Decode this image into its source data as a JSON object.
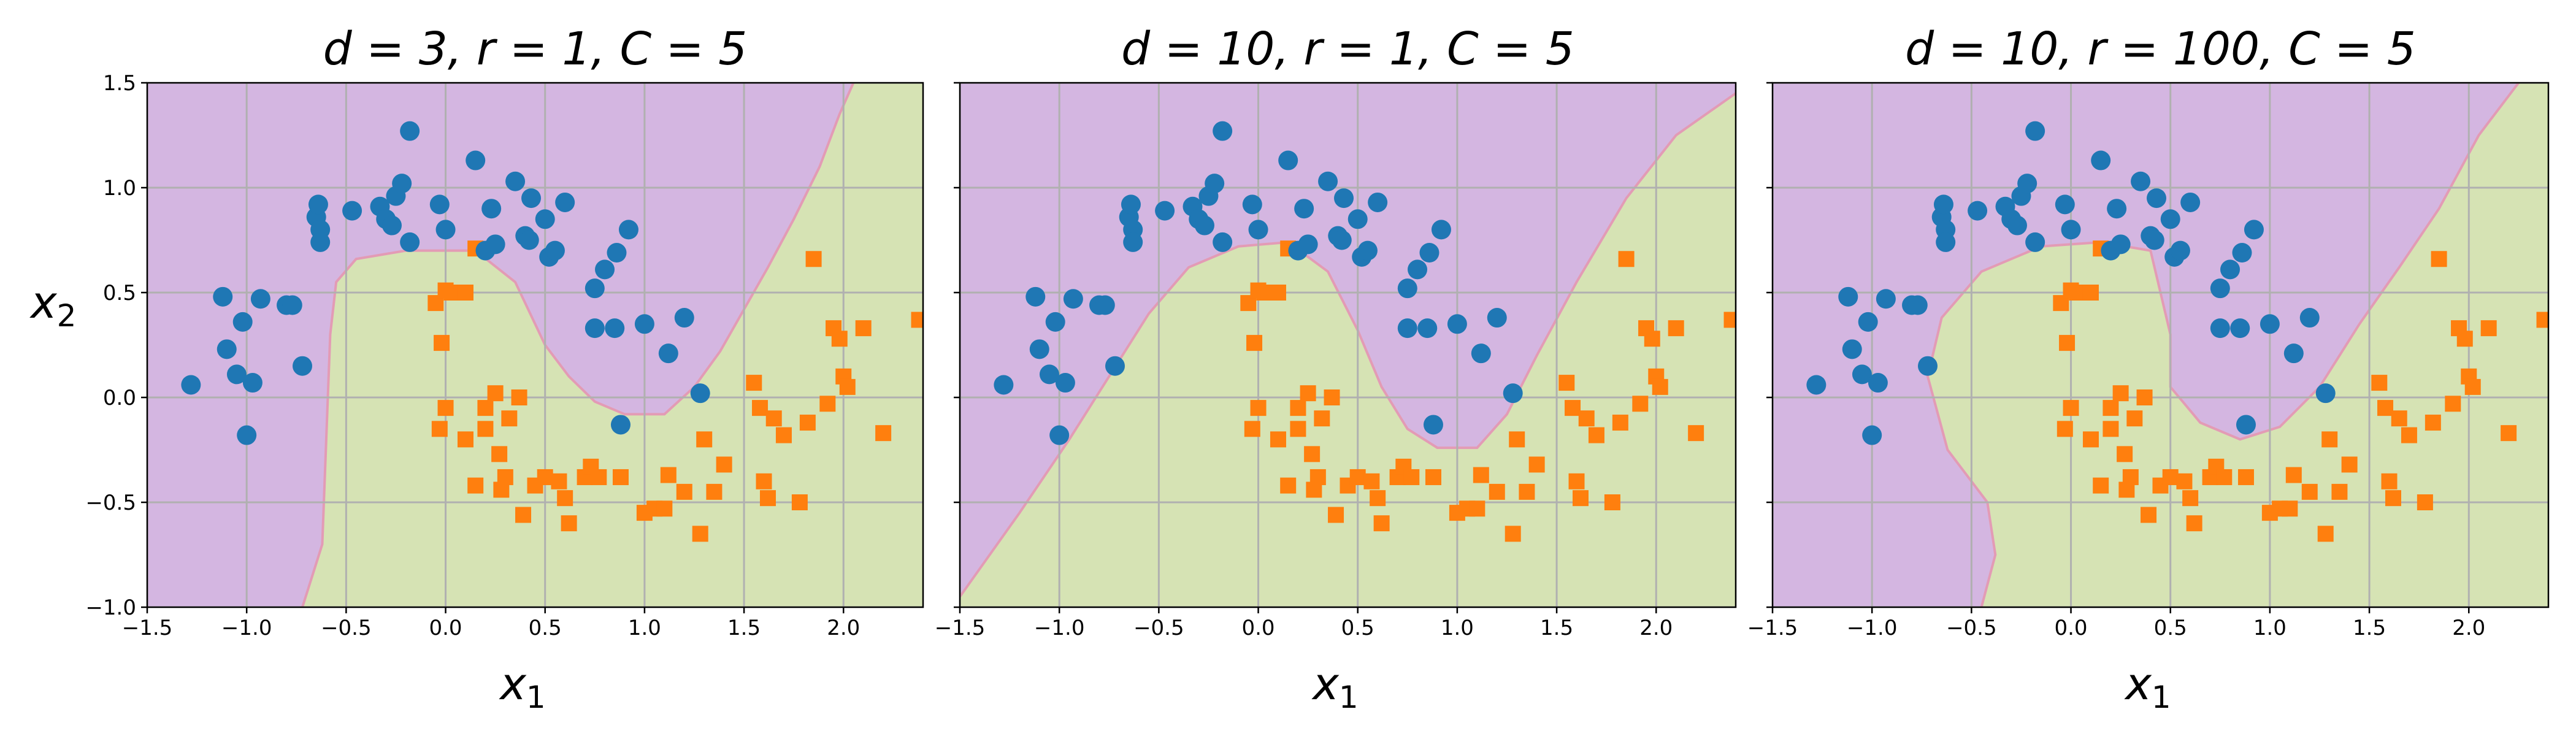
{
  "chart_data": [
    {
      "type": "scatter",
      "title": "d = 3, r = 1, C = 5",
      "xlabel": "x1",
      "ylabel": "x2",
      "xlim": [
        -1.5,
        2.4
      ],
      "ylim": [
        -1.0,
        1.5
      ],
      "xticks": [
        "−1.5",
        "−1.0",
        "−0.5",
        "0.0",
        "0.5",
        "1.0",
        "1.5",
        "2.0"
      ],
      "yticks": [
        "−1.0",
        "−0.5",
        "0.0",
        "0.5",
        "1.0",
        "1.5"
      ],
      "grid": true,
      "boundary": [
        [
          -0.72,
          -1.0
        ],
        [
          -0.62,
          -0.7
        ],
        [
          -0.6,
          -0.2
        ],
        [
          -0.58,
          0.3
        ],
        [
          -0.55,
          0.55
        ],
        [
          -0.45,
          0.66
        ],
        [
          -0.2,
          0.7
        ],
        [
          0.15,
          0.7
        ],
        [
          0.35,
          0.55
        ],
        [
          0.5,
          0.25
        ],
        [
          0.62,
          0.1
        ],
        [
          0.75,
          -0.02
        ],
        [
          0.9,
          -0.08
        ],
        [
          1.1,
          -0.08
        ],
        [
          1.25,
          0.05
        ],
        [
          1.38,
          0.22
        ],
        [
          1.5,
          0.42
        ],
        [
          1.62,
          0.62
        ],
        [
          1.75,
          0.85
        ],
        [
          1.88,
          1.1
        ],
        [
          1.98,
          1.35
        ],
        [
          2.05,
          1.5
        ]
      ]
    },
    {
      "type": "scatter",
      "title": "d = 10, r = 1, C = 5",
      "xlabel": "x1",
      "ylabel": "",
      "xlim": [
        -1.5,
        2.4
      ],
      "ylim": [
        -1.0,
        1.5
      ],
      "xticks": [
        "−1.5",
        "−1.0",
        "−0.5",
        "0.0",
        "0.5",
        "1.0",
        "1.5",
        "2.0"
      ],
      "yticks": [
        "−1.0",
        "−0.5",
        "0.0",
        "0.5",
        "1.0",
        "1.5"
      ],
      "grid": true,
      "boundary": [
        [
          -1.5,
          -0.95
        ],
        [
          -1.2,
          -0.55
        ],
        [
          -0.95,
          -0.2
        ],
        [
          -0.75,
          0.1
        ],
        [
          -0.55,
          0.4
        ],
        [
          -0.35,
          0.62
        ],
        [
          -0.1,
          0.72
        ],
        [
          0.15,
          0.74
        ],
        [
          0.35,
          0.6
        ],
        [
          0.5,
          0.32
        ],
        [
          0.62,
          0.05
        ],
        [
          0.75,
          -0.15
        ],
        [
          0.9,
          -0.24
        ],
        [
          1.1,
          -0.24
        ],
        [
          1.25,
          -0.08
        ],
        [
          1.4,
          0.2
        ],
        [
          1.6,
          0.55
        ],
        [
          1.85,
          0.95
        ],
        [
          2.1,
          1.25
        ],
        [
          2.4,
          1.45
        ]
      ]
    },
    {
      "type": "scatter",
      "title": "d = 10, r = 100, C = 5",
      "xlabel": "x1",
      "ylabel": "",
      "xlim": [
        -1.5,
        2.4
      ],
      "ylim": [
        -1.0,
        1.5
      ],
      "xticks": [
        "−1.5",
        "−1.0",
        "−0.5",
        "0.0",
        "0.5",
        "1.0",
        "1.5",
        "2.0"
      ],
      "yticks": [
        "−1.0",
        "−0.5",
        "0.0",
        "0.5",
        "1.0",
        "1.5"
      ],
      "grid": true,
      "boundary": [
        [
          -0.45,
          -1.0
        ],
        [
          -0.38,
          -0.75
        ],
        [
          -0.42,
          -0.5
        ],
        [
          -0.62,
          -0.25
        ],
        [
          -0.72,
          0.1
        ],
        [
          -0.65,
          0.38
        ],
        [
          -0.45,
          0.6
        ],
        [
          -0.15,
          0.72
        ],
        [
          0.15,
          0.74
        ],
        [
          0.4,
          0.7
        ],
        [
          0.5,
          0.3
        ],
        [
          0.5,
          0.05
        ],
        [
          0.65,
          -0.12
        ],
        [
          0.85,
          -0.2
        ],
        [
          1.05,
          -0.14
        ],
        [
          1.25,
          0.05
        ],
        [
          1.45,
          0.35
        ],
        [
          1.65,
          0.62
        ],
        [
          1.85,
          0.9
        ],
        [
          2.05,
          1.25
        ],
        [
          2.25,
          1.5
        ]
      ]
    }
  ],
  "dataset": {
    "class0": [
      [
        -1.28,
        0.06
      ],
      [
        -1.12,
        0.48
      ],
      [
        -1.1,
        0.23
      ],
      [
        -1.05,
        0.11
      ],
      [
        -1.02,
        0.36
      ],
      [
        -1.0,
        -0.18
      ],
      [
        -0.97,
        0.07
      ],
      [
        -0.93,
        0.47
      ],
      [
        -0.8,
        0.44
      ],
      [
        -0.77,
        0.44
      ],
      [
        -0.72,
        0.15
      ],
      [
        -0.65,
        0.86
      ],
      [
        -0.64,
        0.92
      ],
      [
        -0.63,
        0.8
      ],
      [
        -0.63,
        0.74
      ],
      [
        -0.47,
        0.89
      ],
      [
        -0.33,
        0.91
      ],
      [
        -0.3,
        0.85
      ],
      [
        -0.25,
        0.96
      ],
      [
        -0.22,
        1.02
      ],
      [
        -0.18,
        1.27
      ],
      [
        -0.27,
        0.82
      ],
      [
        -0.18,
        0.74
      ],
      [
        -0.03,
        0.92
      ],
      [
        0.0,
        0.8
      ],
      [
        0.15,
        1.13
      ],
      [
        0.2,
        0.7
      ],
      [
        0.25,
        0.73
      ],
      [
        0.23,
        0.9
      ],
      [
        0.35,
        1.03
      ],
      [
        0.4,
        0.77
      ],
      [
        0.42,
        0.75
      ],
      [
        0.43,
        0.95
      ],
      [
        0.5,
        0.85
      ],
      [
        0.52,
        0.67
      ],
      [
        0.55,
        0.7
      ],
      [
        0.6,
        0.93
      ],
      [
        0.75,
        0.52
      ],
      [
        0.75,
        0.33
      ],
      [
        0.8,
        0.61
      ],
      [
        0.85,
        0.33
      ],
      [
        0.86,
        0.69
      ],
      [
        0.88,
        -0.13
      ],
      [
        0.92,
        0.8
      ],
      [
        1.0,
        0.35
      ],
      [
        1.12,
        0.21
      ],
      [
        1.2,
        0.38
      ],
      [
        1.28,
        0.02
      ]
    ],
    "class1": [
      [
        -0.05,
        0.45
      ],
      [
        -0.02,
        0.26
      ],
      [
        0.0,
        0.51
      ],
      [
        0.03,
        0.5
      ],
      [
        0.1,
        0.5
      ],
      [
        0.15,
        0.71
      ],
      [
        0.2,
        -0.05
      ],
      [
        0.2,
        -0.15
      ],
      [
        0.25,
        0.02
      ],
      [
        0.27,
        -0.27
      ],
      [
        0.28,
        -0.44
      ],
      [
        0.3,
        -0.38
      ],
      [
        0.32,
        -0.1
      ],
      [
        0.37,
        0.0
      ],
      [
        0.39,
        -0.56
      ],
      [
        -0.03,
        -0.15
      ],
      [
        0.0,
        -0.05
      ],
      [
        0.1,
        -0.2
      ],
      [
        0.15,
        -0.42
      ],
      [
        0.45,
        -0.42
      ],
      [
        0.5,
        -0.38
      ],
      [
        0.57,
        -0.4
      ],
      [
        0.6,
        -0.48
      ],
      [
        0.62,
        -0.6
      ],
      [
        0.7,
        -0.38
      ],
      [
        0.73,
        -0.33
      ],
      [
        0.77,
        -0.38
      ],
      [
        0.88,
        -0.38
      ],
      [
        1.0,
        -0.55
      ],
      [
        1.05,
        -0.53
      ],
      [
        1.1,
        -0.53
      ],
      [
        1.12,
        -0.37
      ],
      [
        1.2,
        -0.45
      ],
      [
        1.28,
        -0.65
      ],
      [
        1.3,
        -0.2
      ],
      [
        1.35,
        -0.45
      ],
      [
        1.4,
        -0.32
      ],
      [
        1.55,
        0.07
      ],
      [
        1.58,
        -0.05
      ],
      [
        1.6,
        -0.4
      ],
      [
        1.62,
        -0.48
      ],
      [
        1.65,
        -0.1
      ],
      [
        1.7,
        -0.18
      ],
      [
        1.78,
        -0.5
      ],
      [
        1.82,
        -0.12
      ],
      [
        1.85,
        0.66
      ],
      [
        1.92,
        -0.03
      ],
      [
        1.95,
        0.33
      ],
      [
        1.98,
        0.28
      ],
      [
        2.0,
        0.1
      ],
      [
        2.02,
        0.05
      ],
      [
        2.1,
        0.33
      ],
      [
        2.2,
        -0.17
      ],
      [
        2.38,
        0.37
      ]
    ]
  },
  "colors": {
    "class0": "#1f77b4",
    "class1": "#ff7f0e",
    "region_purple": "#d4b6e1",
    "region_green": "#d6e3b4"
  }
}
